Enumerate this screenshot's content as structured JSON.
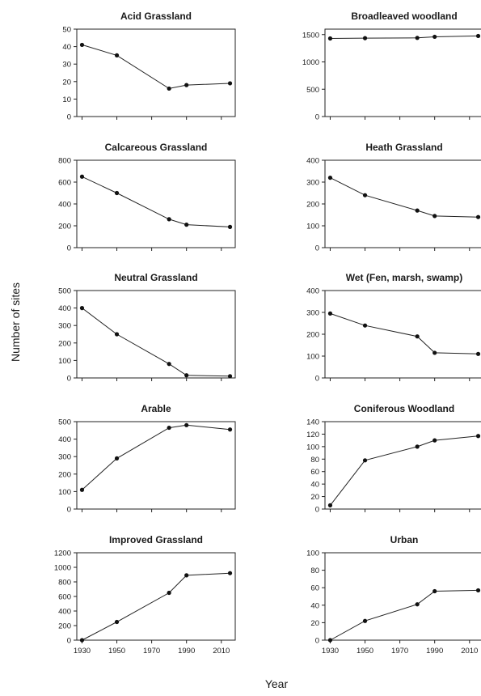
{
  "figure": {
    "xlabel": "Year",
    "ylabel": "Number of sites"
  },
  "chart_data": [
    {
      "type": "line",
      "title": "Acid Grassland",
      "x": [
        1930,
        1950,
        1980,
        1990,
        2015
      ],
      "y": [
        41,
        35,
        16,
        18,
        19
      ],
      "xlim": [
        1927,
        2018
      ],
      "xticks": [
        1930,
        1950,
        1970,
        1990,
        2010
      ],
      "ylim": [
        0,
        50
      ],
      "yticks": [
        0,
        10,
        20,
        30,
        40,
        50
      ],
      "show_x_ticklabels": false
    },
    {
      "type": "line",
      "title": "Broadleaved woodland",
      "x": [
        1930,
        1950,
        1980,
        1990,
        2015
      ],
      "y": [
        1430,
        1435,
        1440,
        1460,
        1475
      ],
      "xlim": [
        1927,
        2018
      ],
      "xticks": [
        1930,
        1950,
        1970,
        1990,
        2010
      ],
      "ylim": [
        0,
        1600
      ],
      "yticks": [
        0,
        500,
        1000,
        1500
      ],
      "show_x_ticklabels": false
    },
    {
      "type": "line",
      "title": "Calcareous Grassland",
      "x": [
        1930,
        1950,
        1980,
        1990,
        2015
      ],
      "y": [
        650,
        500,
        260,
        210,
        190
      ],
      "xlim": [
        1927,
        2018
      ],
      "xticks": [
        1930,
        1950,
        1970,
        1990,
        2010
      ],
      "ylim": [
        0,
        800
      ],
      "yticks": [
        0,
        200,
        400,
        600,
        800
      ],
      "show_x_ticklabels": false
    },
    {
      "type": "line",
      "title": "Heath Grassland",
      "x": [
        1930,
        1950,
        1980,
        1990,
        2015
      ],
      "y": [
        320,
        240,
        170,
        145,
        140
      ],
      "xlim": [
        1927,
        2018
      ],
      "xticks": [
        1930,
        1950,
        1970,
        1990,
        2010
      ],
      "ylim": [
        0,
        400
      ],
      "yticks": [
        0,
        100,
        200,
        300,
        400
      ],
      "show_x_ticklabels": false
    },
    {
      "type": "line",
      "title": "Neutral Grassland",
      "x": [
        1930,
        1950,
        1980,
        1990,
        2015
      ],
      "y": [
        400,
        250,
        80,
        15,
        10
      ],
      "xlim": [
        1927,
        2018
      ],
      "xticks": [
        1930,
        1950,
        1970,
        1990,
        2010
      ],
      "ylim": [
        0,
        500
      ],
      "yticks": [
        0,
        100,
        200,
        300,
        400,
        500
      ],
      "show_x_ticklabels": false
    },
    {
      "type": "line",
      "title": "Wet (Fen, marsh, swamp)",
      "x": [
        1930,
        1950,
        1980,
        1990,
        2015
      ],
      "y": [
        295,
        240,
        190,
        115,
        110
      ],
      "xlim": [
        1927,
        2018
      ],
      "xticks": [
        1930,
        1950,
        1970,
        1990,
        2010
      ],
      "ylim": [
        0,
        400
      ],
      "yticks": [
        0,
        100,
        200,
        300,
        400
      ],
      "show_x_ticklabels": false
    },
    {
      "type": "line",
      "title": "Arable",
      "x": [
        1930,
        1950,
        1980,
        1990,
        2015
      ],
      "y": [
        110,
        290,
        465,
        480,
        455
      ],
      "xlim": [
        1927,
        2018
      ],
      "xticks": [
        1930,
        1950,
        1970,
        1990,
        2010
      ],
      "ylim": [
        0,
        500
      ],
      "yticks": [
        0,
        100,
        200,
        300,
        400,
        500
      ],
      "show_x_ticklabels": false
    },
    {
      "type": "line",
      "title": "Coniferous Woodland",
      "x": [
        1930,
        1950,
        1980,
        1990,
        2015
      ],
      "y": [
        6,
        78,
        100,
        110,
        117
      ],
      "xlim": [
        1927,
        2018
      ],
      "xticks": [
        1930,
        1950,
        1970,
        1990,
        2010
      ],
      "ylim": [
        0,
        140
      ],
      "yticks": [
        0,
        20,
        40,
        60,
        80,
        100,
        120,
        140
      ],
      "show_x_ticklabels": false
    },
    {
      "type": "line",
      "title": "Improved Grassland",
      "x": [
        1930,
        1950,
        1980,
        1990,
        2015
      ],
      "y": [
        0,
        250,
        650,
        890,
        920
      ],
      "xlim": [
        1927,
        2018
      ],
      "xticks": [
        1930,
        1950,
        1970,
        1990,
        2010
      ],
      "ylim": [
        0,
        1200
      ],
      "yticks": [
        0,
        200,
        400,
        600,
        800,
        1000,
        1200
      ],
      "show_x_ticklabels": true
    },
    {
      "type": "line",
      "title": "Urban",
      "x": [
        1930,
        1950,
        1980,
        1990,
        2015
      ],
      "y": [
        0,
        22,
        41,
        56,
        57
      ],
      "xlim": [
        1927,
        2018
      ],
      "xticks": [
        1930,
        1950,
        1970,
        1990,
        2010
      ],
      "ylim": [
        0,
        100
      ],
      "yticks": [
        0,
        20,
        40,
        60,
        80,
        100
      ],
      "show_x_ticklabels": true
    }
  ]
}
